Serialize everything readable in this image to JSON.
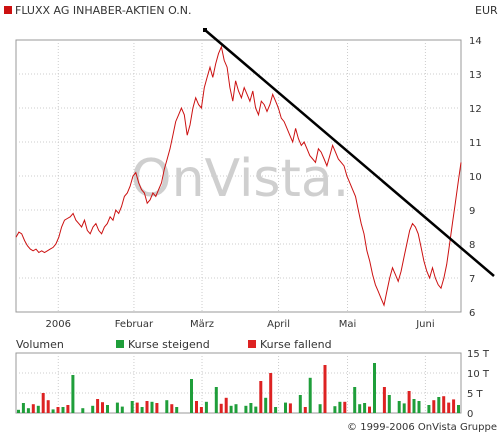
{
  "header": {
    "title": "FLUXX AG INHABER-AKTIEN O.N.",
    "currency": "EUR"
  },
  "watermark": "OnVista.",
  "volume_panel": {
    "title": "Volumen",
    "legend_up": "Kurse steigend",
    "legend_down": "Kurse fallend"
  },
  "copyright": "© 1999-2006 OnVista Gruppe",
  "colors": {
    "price_line": "#cc1111",
    "trend_line": "#000000",
    "volume_up": "#1f9e3a",
    "volume_down": "#dd2222",
    "grid": "#cccccc",
    "frame": "#999999",
    "watermark": "#cfcfcf",
    "watermark_dot": "#f0aaaa"
  },
  "chart_data": [
    {
      "type": "line",
      "title": "FLUXX AG INHABER-AKTIEN O.N.",
      "ylabel": "EUR",
      "ylim": [
        6,
        14
      ],
      "yticks": [
        6,
        7,
        8,
        9,
        10,
        11,
        12,
        13,
        14
      ],
      "x_tick_labels": [
        "2006",
        "Februar",
        "März",
        "April",
        "Mai",
        "Juni"
      ],
      "grid": true,
      "series": [
        {
          "values": [
            8.2,
            8.35,
            8.3,
            8.1,
            7.95,
            7.85,
            7.8,
            7.85,
            7.75,
            7.8,
            7.75,
            7.8,
            7.85,
            7.9,
            8.0,
            8.2,
            8.5,
            8.7,
            8.75,
            8.8,
            8.9,
            8.7,
            8.6,
            8.5,
            8.7,
            8.4,
            8.3,
            8.5,
            8.6,
            8.4,
            8.3,
            8.5,
            8.6,
            8.8,
            8.7,
            9.0,
            8.9,
            9.1,
            9.4,
            9.5,
            9.7,
            10.0,
            10.1,
            9.8,
            9.6,
            9.5,
            9.2,
            9.3,
            9.5,
            9.4,
            9.6,
            9.8,
            10.2,
            10.5,
            10.8,
            11.2,
            11.6,
            11.8,
            12.0,
            11.8,
            11.2,
            11.5,
            12.0,
            12.3,
            12.1,
            12.0,
            12.6,
            12.9,
            13.2,
            12.9,
            13.3,
            13.6,
            13.8,
            13.4,
            13.2,
            12.6,
            12.2,
            12.8,
            12.5,
            12.3,
            12.6,
            12.4,
            12.2,
            12.5,
            12.0,
            11.8,
            12.2,
            12.1,
            11.9,
            12.1,
            12.4,
            12.2,
            12.0,
            11.7,
            11.6,
            11.4,
            11.2,
            11.0,
            11.4,
            11.1,
            10.9,
            11.0,
            10.8,
            10.6,
            10.5,
            10.4,
            10.8,
            10.7,
            10.5,
            10.3,
            10.6,
            10.9,
            10.7,
            10.5,
            10.4,
            10.3,
            10.0,
            9.8,
            9.6,
            9.4,
            9.0,
            8.6,
            8.3,
            7.8,
            7.5,
            7.1,
            6.8,
            6.6,
            6.4,
            6.2,
            6.6,
            7.0,
            7.3,
            7.1,
            6.9,
            7.2,
            7.6,
            8.0,
            8.4,
            8.6,
            8.5,
            8.3,
            7.9,
            7.5,
            7.2,
            7.0,
            7.3,
            7.0,
            6.8,
            6.7,
            7.0,
            7.4,
            8.0,
            8.6,
            9.2,
            9.8,
            10.4
          ]
        }
      ],
      "annotations": [
        "trend line"
      ]
    },
    {
      "type": "bar",
      "title": "Volumen",
      "ylabel": "",
      "ylim": [
        0,
        15000
      ],
      "yticks": [
        "0",
        "5 T",
        "10 T",
        "15 T"
      ],
      "series": [
        {
          "name": "Kurse steigend",
          "values": [
            800,
            2500,
            1200,
            0,
            1800,
            0,
            0,
            900,
            0,
            1500,
            0,
            9500,
            0,
            1200,
            0,
            1800,
            0,
            0,
            2000,
            0,
            2600,
            1600,
            0,
            3000,
            0,
            1500,
            0,
            2800,
            0,
            0,
            3200,
            0,
            1500,
            0,
            0,
            8500,
            0,
            0,
            2800,
            0,
            6500,
            0,
            0,
            1800,
            2200,
            0,
            1800,
            2500,
            1600,
            0,
            3800,
            0,
            1500,
            0,
            2600,
            0,
            0,
            4500,
            0,
            8800,
            0,
            2200,
            0,
            0,
            1700,
            2800,
            0,
            0,
            6500,
            2200,
            2500,
            0,
            12500,
            0,
            0,
            4500,
            0,
            3000,
            2400,
            0,
            3500,
            3000,
            0,
            2000,
            0,
            4000,
            0,
            0,
            0,
            2000
          ]
        },
        {
          "name": "Kurse fallend",
          "values": [
            0,
            0,
            0,
            2200,
            0,
            5000,
            3200,
            0,
            1500,
            0,
            2000,
            0,
            0,
            0,
            0,
            0,
            3500,
            2700,
            0,
            0,
            0,
            0,
            0,
            0,
            2600,
            0,
            3000,
            0,
            2500,
            0,
            0,
            2200,
            0,
            0,
            0,
            0,
            3000,
            1500,
            0,
            0,
            0,
            2300,
            3800,
            0,
            0,
            0,
            0,
            0,
            0,
            8000,
            0,
            10000,
            0,
            0,
            0,
            2400,
            0,
            0,
            1500,
            0,
            0,
            0,
            12000,
            0,
            0,
            0,
            2800,
            0,
            0,
            0,
            0,
            1600,
            0,
            0,
            6500,
            0,
            0,
            0,
            0,
            5500,
            0,
            0,
            0,
            0,
            3200,
            0,
            4200,
            2600,
            3400,
            0
          ]
        }
      ]
    }
  ]
}
